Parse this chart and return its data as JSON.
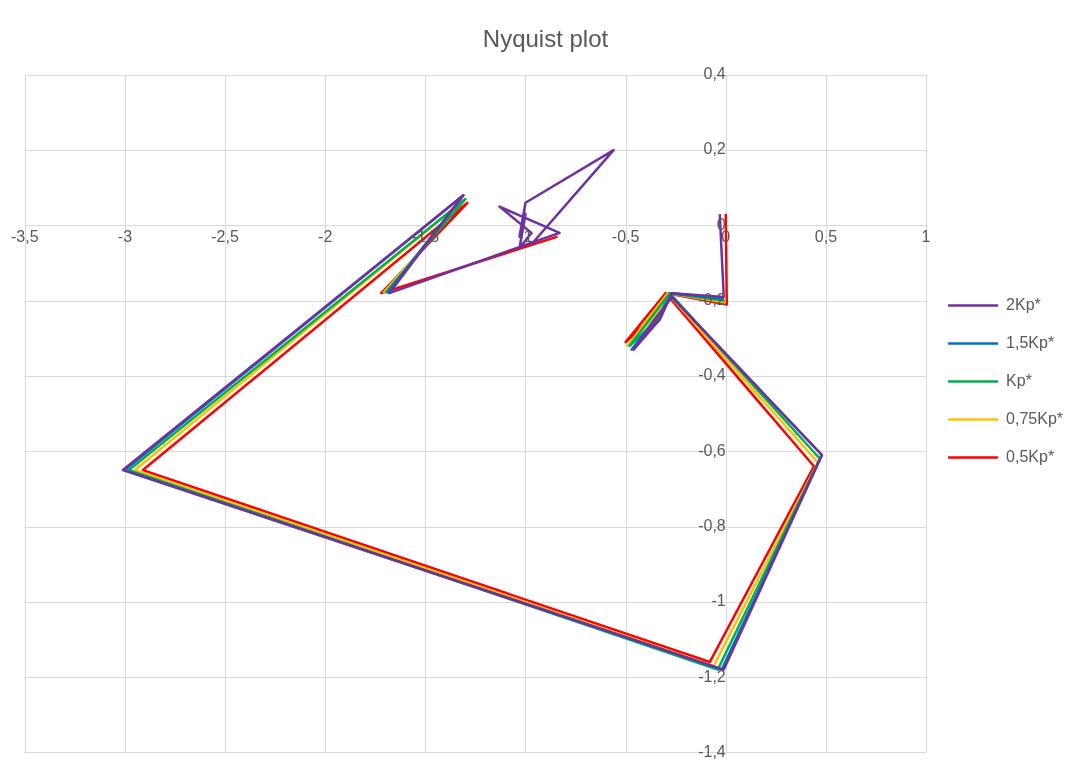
{
  "chart_data": {
    "type": "line",
    "title": "Nyquist plot",
    "xlim": [
      -3.5,
      1
    ],
    "ylim": [
      -1.4,
      0.4
    ],
    "xticks": [
      {
        "value": -3.5,
        "label": "-3,5"
      },
      -3,
      {
        "value": -2.5,
        "label": "-2,5"
      },
      -2,
      {
        "value": -1.5,
        "label": "-1,5"
      },
      -1,
      {
        "value": -0.5,
        "label": "-0,5"
      },
      0,
      {
        "value": 0.5,
        "label": "0,5"
      },
      1
    ],
    "yticks": [
      {
        "value": -1.4,
        "label": "-1,4"
      },
      {
        "value": -1.2,
        "label": "-1,2"
      },
      -1,
      {
        "value": -0.8,
        "label": "-0,8"
      },
      {
        "value": -0.6,
        "label": "-0,6"
      },
      {
        "value": -0.4,
        "label": "-0,4"
      },
      {
        "value": -0.2,
        "label": "-0,2"
      },
      0,
      {
        "value": 0.2,
        "label": "0,2"
      },
      {
        "value": 0.4,
        "label": "0,4"
      }
    ],
    "grid": true,
    "legend": "right",
    "series": [
      {
        "name": "0,5Kp*",
        "color": "#ff0000",
        "x": [
          0.0,
          0.005,
          -0.3,
          -0.36,
          -0.5,
          -0.3,
          0.44,
          -0.08,
          -2.91,
          -1.29,
          -1.72,
          -0.84,
          null,
          null,
          null,
          null,
          null,
          null,
          null,
          null
        ],
        "values": [
          0.03,
          -0.21,
          -0.18,
          -0.24,
          -0.31,
          -0.18,
          -0.64,
          -1.16,
          -0.65,
          0.06,
          -0.18,
          -0.03,
          null,
          null,
          null,
          null,
          null,
          null,
          null,
          null
        ]
      },
      {
        "name": "0,75Kp*",
        "color": "#ffc000",
        "x": [
          null,
          0.0,
          -0.29,
          -0.35,
          -0.49,
          -0.29,
          0.46,
          -0.06,
          -2.95,
          -1.3,
          -1.71,
          null,
          null,
          null,
          null,
          null,
          null,
          null,
          null,
          null
        ],
        "values": [
          null,
          -0.205,
          -0.18,
          -0.24,
          -0.32,
          -0.18,
          -0.63,
          -1.17,
          -0.65,
          0.07,
          -0.18,
          null,
          null,
          null,
          null,
          null,
          null,
          null,
          null,
          null
        ]
      },
      {
        "name": "Kp*",
        "color": "#00b050",
        "x": [
          null,
          -0.005,
          -0.28,
          -0.34,
          -0.48,
          -0.28,
          0.47,
          -0.04,
          -2.98,
          -1.3,
          -1.7,
          null,
          null,
          null,
          null,
          null,
          null,
          null,
          null,
          null
        ],
        "values": [
          null,
          -0.2,
          -0.18,
          -0.25,
          -0.32,
          -0.18,
          -0.62,
          -1.18,
          -0.65,
          0.07,
          -0.18,
          null,
          null,
          null,
          null,
          null,
          null,
          null,
          null,
          null
        ]
      },
      {
        "name": "1,5Kp*",
        "color": "#0070c0",
        "x": [
          null,
          -0.01,
          -0.27,
          -0.33,
          -0.47,
          -0.27,
          0.48,
          -0.02,
          -3.0,
          -1.31,
          -1.69,
          null,
          null,
          null,
          null,
          null,
          null,
          null,
          null,
          null
        ],
        "values": [
          null,
          -0.195,
          -0.18,
          -0.25,
          -0.33,
          -0.19,
          -0.61,
          -1.18,
          -0.65,
          0.08,
          -0.18,
          null,
          null,
          null,
          null,
          null,
          null,
          null,
          null,
          null
        ]
      },
      {
        "name": "2Kp*",
        "color": "#7030a0",
        "x": [
          -0.03,
          -0.01,
          -0.27,
          -0.33,
          -0.46,
          -0.27,
          0.48,
          -0.01,
          -3.01,
          -1.31,
          -1.68,
          -0.83,
          -1.13,
          -0.97,
          -1.03,
          -1.0,
          -1.03,
          -1.0,
          -0.56,
          -0.97
        ],
        "values": [
          0.03,
          -0.19,
          -0.18,
          -0.25,
          -0.33,
          -0.19,
          -0.61,
          -1.18,
          -0.65,
          0.08,
          -0.18,
          -0.02,
          0.05,
          -0.02,
          -0.06,
          0.03,
          -0.03,
          0.06,
          0.2,
          -0.05
        ]
      }
    ]
  }
}
